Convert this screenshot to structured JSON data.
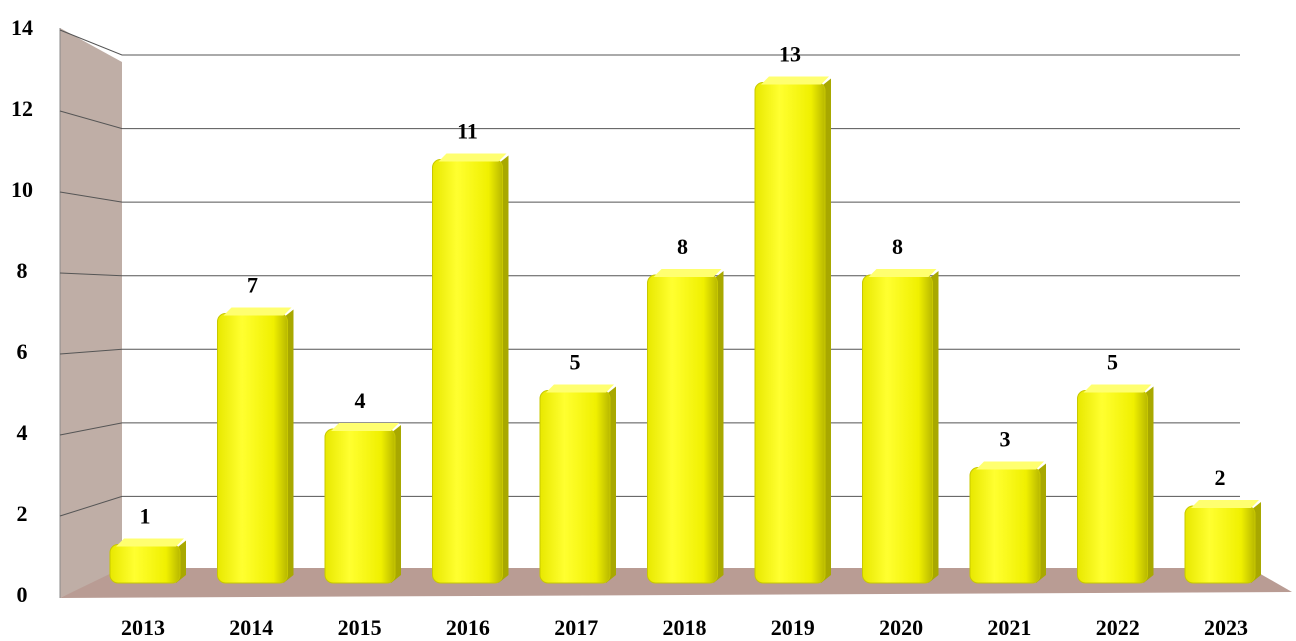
{
  "chart_data": {
    "type": "bar",
    "categories": [
      "2013",
      "2014",
      "2015",
      "2016",
      "2017",
      "2018",
      "2019",
      "2020",
      "2021",
      "2022",
      "2023"
    ],
    "values": [
      1,
      7,
      4,
      11,
      5,
      8,
      13,
      8,
      3,
      5,
      2
    ],
    "color": "#ffff00",
    "ylim": [
      0,
      14
    ],
    "yticks": [
      0,
      2,
      4,
      6,
      8,
      10,
      12,
      14
    ],
    "grid": true
  }
}
